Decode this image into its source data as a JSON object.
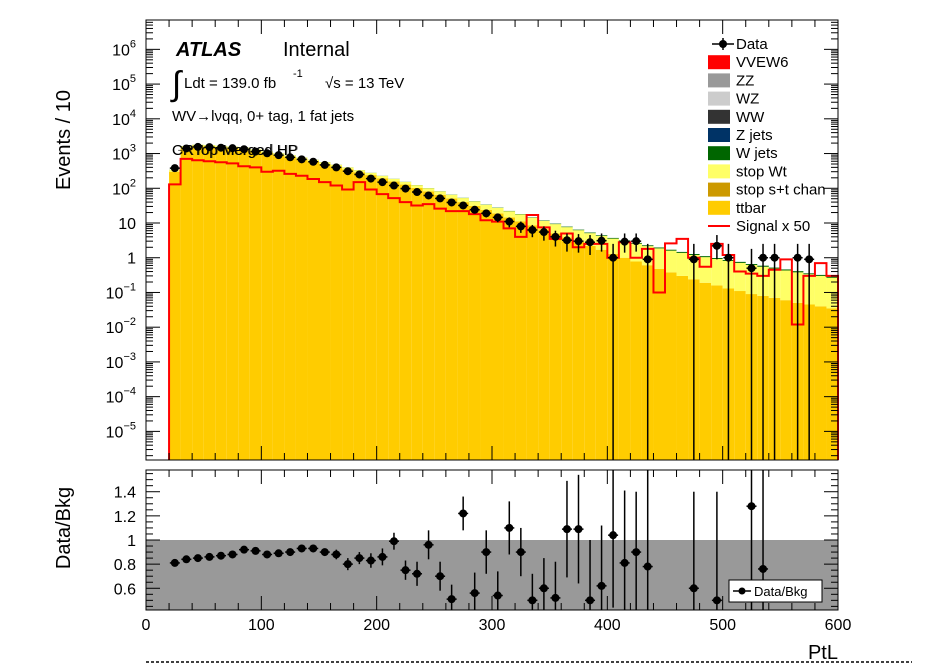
{
  "chart_data": [
    {
      "type": "bar",
      "panel": "main",
      "ylabel": "Events / 10",
      "xlabel": "PtL",
      "log_y": true,
      "xlim": [
        0,
        600
      ],
      "ylim": [
        1.5e-06,
        7000000.0
      ],
      "yticks": [
        {
          "v": 1000000.0,
          "b": "10",
          "e": "6"
        },
        {
          "v": 100000.0,
          "b": "10",
          "e": "5"
        },
        {
          "v": 10000.0,
          "b": "10",
          "e": "4"
        },
        {
          "v": 1000.0,
          "b": "10",
          "e": "3"
        },
        {
          "v": 100.0,
          "b": "10",
          "e": "2"
        },
        {
          "v": 10,
          "b": "10",
          "e": ""
        },
        {
          "v": 1,
          "b": "1",
          "e": ""
        },
        {
          "v": 0.1,
          "b": "10",
          "e": "−1"
        },
        {
          "v": 0.01,
          "b": "10",
          "e": "−2"
        },
        {
          "v": 0.001,
          "b": "10",
          "e": "−3"
        },
        {
          "v": 0.0001,
          "b": "10",
          "e": "−4"
        },
        {
          "v": 1e-05,
          "b": "10",
          "e": "−5"
        }
      ],
      "atlas_label": "ATLAS",
      "atlas_status": "Internal",
      "lumi_text": "Ldt = 139.0 fb",
      "lumi_exp": "-1",
      "energy_text": "√s = 13 TeV",
      "channel_text": "WV→lνqq, 0+ tag, 1 fat jets",
      "region_text_a": "CRTop Merged HP",
      "region_text_b": "GRTop Merged HP",
      "legend": [
        {
          "label": "Data",
          "kind": "marker",
          "color": "#000000"
        },
        {
          "label": "VVEW6",
          "kind": "box",
          "color": "#ff0000"
        },
        {
          "label": "ZZ",
          "kind": "box",
          "color": "#999999"
        },
        {
          "label": "WZ",
          "kind": "box",
          "color": "#cccccc"
        },
        {
          "label": "WW",
          "kind": "box",
          "color": "#333333"
        },
        {
          "label": "Z jets",
          "kind": "box",
          "color": "#003366"
        },
        {
          "label": "W jets",
          "kind": "box",
          "color": "#006600"
        },
        {
          "label": "stop Wt",
          "kind": "box",
          "color": "#ffff66"
        },
        {
          "label": "stop s+t chan",
          "kind": "box",
          "color": "#cc9900"
        },
        {
          "label": "ttbar",
          "kind": "box",
          "color": "#ffcc00"
        },
        {
          "label": "Signal x 50",
          "kind": "line",
          "color": "#ff0000"
        }
      ],
      "bin_edges_start": 20,
      "bin_width": 10,
      "ttbar": [
        300,
        1500,
        1650,
        1600,
        1520,
        1450,
        1350,
        1200,
        1050,
        920,
        800,
        690,
        590,
        500,
        420,
        350,
        290,
        240,
        195,
        158,
        128,
        102,
        82,
        65,
        51,
        40,
        31,
        24,
        19,
        14.5,
        11.2,
        8.6,
        6.6,
        5.0,
        3.8,
        2.9,
        2.2,
        1.7,
        1.3,
        1.0,
        0.78,
        0.61,
        0.48,
        0.38,
        0.3,
        0.24,
        0.19,
        0.16,
        0.13,
        0.11,
        0.09,
        0.08,
        0.07,
        0.06,
        0.05,
        0.045,
        0.04,
        0.035
      ],
      "stop_wt": [
        40,
        140,
        150,
        150,
        145,
        140,
        130,
        120,
        110,
        98,
        88,
        78,
        70,
        62,
        55,
        48,
        42,
        37,
        32,
        28,
        24,
        21,
        18.5,
        16,
        14,
        12.3,
        10.8,
        9.5,
        8.3,
        7.3,
        6.4,
        5.6,
        4.9,
        4.3,
        3.8,
        3.3,
        2.9,
        2.55,
        2.25,
        2.0,
        1.75,
        1.55,
        1.38,
        1.22,
        1.08,
        0.96,
        0.85,
        0.76,
        0.68,
        0.6,
        0.53,
        0.47,
        0.42,
        0.37,
        0.33,
        0.29,
        0.26,
        0.23
      ],
      "w_jets": [
        2,
        6,
        6,
        6,
        6,
        5,
        5,
        5,
        4,
        4,
        4,
        3,
        3,
        3,
        2.5,
        2.2,
        2,
        1.8,
        1.6,
        1.4,
        1.2,
        1.1,
        1,
        0.9,
        0.8,
        0.7,
        0.6,
        0.55,
        0.5,
        0.45,
        0.4,
        0.36,
        0.32,
        0.29,
        0.26,
        0.23,
        0.21,
        0.19,
        0.17,
        0.15,
        0.14,
        0.12,
        0.11,
        0.1,
        0.09,
        0.08,
        0.07,
        0.06,
        0.05,
        0.05,
        0.04,
        0.04,
        0.03,
        0.03,
        0.03,
        0.02,
        0.02,
        0.02
      ],
      "signal_x50": [
        130,
        700,
        640,
        600,
        560,
        520,
        430,
        400,
        300,
        320,
        260,
        230,
        185,
        150,
        120,
        92,
        150,
        92,
        68,
        52,
        40,
        32,
        35,
        26,
        22,
        22,
        18,
        12,
        11,
        7,
        4,
        17,
        7.5,
        3.5,
        5,
        2,
        2.5,
        2.5,
        1,
        2.8,
        1,
        1.8,
        0.1,
        2.6,
        3.5,
        1,
        0.55,
        2.5,
        1.2,
        0.4,
        0.35,
        0.3,
        0.45,
        0.9,
        0.012,
        0.3,
        0.7,
        0.3
      ],
      "data_x": [
        25,
        35,
        45,
        55,
        65,
        75,
        85,
        95,
        105,
        115,
        125,
        135,
        145,
        155,
        165,
        175,
        185,
        195,
        205,
        215,
        225,
        235,
        245,
        255,
        265,
        275,
        285,
        295,
        305,
        315,
        325,
        335,
        345,
        355,
        365,
        375,
        385,
        395,
        405,
        415,
        425,
        435,
        475,
        495,
        505,
        525,
        535,
        545,
        565,
        575
      ],
      "data_y": [
        380,
        1400,
        1550,
        1530,
        1470,
        1430,
        1330,
        1140,
        1020,
        900,
        780,
        680,
        580,
        470,
        400,
        310,
        250,
        190,
        150,
        120,
        98,
        78,
        62,
        51,
        39,
        32,
        24,
        19,
        14.5,
        11,
        8,
        6.3,
        5.5,
        4,
        3.2,
        3,
        2.8,
        3.1,
        1,
        2.9,
        3,
        0.9,
        0.9,
        2.2,
        1,
        0.5,
        1,
        1,
        1,
        0.9
      ],
      "data_err_hi": [
        440,
        1440,
        1590,
        1570,
        1510,
        1470,
        1370,
        1180,
        1050,
        930,
        810,
        710,
        605,
        490,
        420,
        328,
        266,
        205,
        162,
        131,
        108,
        87,
        70,
        58,
        46,
        38,
        29,
        24,
        18.5,
        14.5,
        11,
        8.8,
        8,
        6,
        5,
        4.8,
        4.5,
        5,
        2.5,
        5,
        5,
        2.5,
        2.5,
        4.5,
        2.5,
        1.8,
        2.5,
        2.5,
        2.5,
        2.5
      ],
      "data_err_lo": [
        320,
        1360,
        1510,
        1490,
        1430,
        1390,
        1290,
        1100,
        990,
        870,
        750,
        650,
        555,
        450,
        380,
        292,
        234,
        175,
        138,
        109,
        88,
        69,
        54,
        44,
        32,
        26,
        19,
        14.5,
        10.5,
        7.5,
        5.2,
        3.9,
        3.1,
        2.1,
        1.5,
        1.4,
        1.2,
        1.5,
        1.5e-06,
        1.4,
        1.5,
        1.5e-06,
        1.5e-06,
        0.9,
        1.5e-06,
        1.5e-06,
        1.5e-06,
        1.5e-06,
        1.5e-06,
        1.5e-06
      ]
    },
    {
      "type": "scatter",
      "panel": "ratio",
      "ylabel": "Data/Bkg",
      "xlabel": "PtL",
      "xlim": [
        0,
        600
      ],
      "ylim": [
        0.42,
        1.58
      ],
      "yticks": [
        0.6,
        0.8,
        1,
        1.2,
        1.4
      ],
      "xticks": [
        0,
        100,
        200,
        300,
        400,
        500,
        600
      ],
      "legend": "Data/Bkg",
      "band": [
        0,
        1
      ],
      "x": [
        25,
        35,
        45,
        55,
        65,
        75,
        85,
        95,
        105,
        115,
        125,
        135,
        145,
        155,
        165,
        175,
        185,
        195,
        205,
        215,
        225,
        235,
        245,
        255,
        265,
        275,
        285,
        295,
        305,
        315,
        325,
        335,
        345,
        355,
        365,
        375,
        385,
        395,
        405,
        415,
        425,
        435,
        475,
        495,
        505,
        525,
        535,
        545
      ],
      "y": [
        0.81,
        0.84,
        0.85,
        0.86,
        0.87,
        0.88,
        0.92,
        0.91,
        0.88,
        0.89,
        0.9,
        0.93,
        0.93,
        0.9,
        0.88,
        0.8,
        0.85,
        0.83,
        0.86,
        0.99,
        0.75,
        0.72,
        0.96,
        0.7,
        0.51,
        1.22,
        0.56,
        0.9,
        0.54,
        1.1,
        0.9,
        0.5,
        0.6,
        0.52,
        1.09,
        1.09,
        0.5,
        0.62,
        1.04,
        0.81,
        0.9,
        0.78,
        0.6,
        0.5,
        0.4,
        1.28,
        0.76,
        0.4
      ],
      "err": [
        0.03,
        0.02,
        0.02,
        0.02,
        0.02,
        0.02,
        0.02,
        0.02,
        0.02,
        0.02,
        0.03,
        0.03,
        0.03,
        0.03,
        0.04,
        0.05,
        0.05,
        0.06,
        0.07,
        0.07,
        0.08,
        0.1,
        0.12,
        0.12,
        0.12,
        0.14,
        0.17,
        0.18,
        0.2,
        0.22,
        0.2,
        0.22,
        0.25,
        0.3,
        0.4,
        0.45,
        0.5,
        0.5,
        0.6,
        0.6,
        0.5,
        0.8,
        0.8,
        0.9,
        0.9,
        1.0,
        1.0,
        1.0
      ]
    }
  ]
}
